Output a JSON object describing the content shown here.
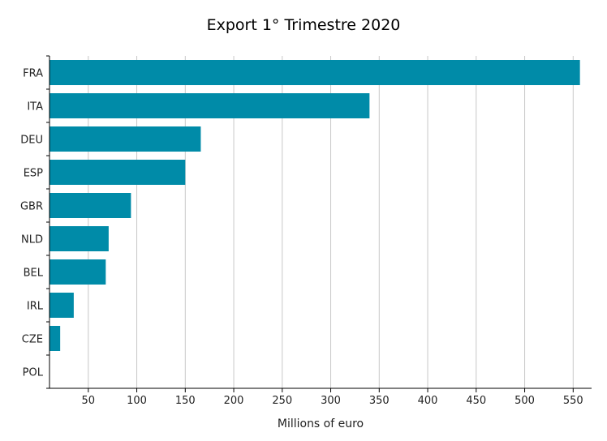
{
  "chart_data": {
    "type": "bar",
    "orientation": "horizontal",
    "title": "Export 1° Trimestre 2020",
    "xlabel": "Millions of euro",
    "ylabel": "",
    "categories": [
      "FRA",
      "ITA",
      "DEU",
      "ESP",
      "GBR",
      "NLD",
      "BEL",
      "IRL",
      "CZE",
      "POL"
    ],
    "values": [
      557,
      340,
      166,
      150,
      94,
      71,
      68,
      35,
      21,
      1
    ],
    "xlim": [
      10,
      570
    ],
    "xticks": [
      50,
      100,
      150,
      200,
      250,
      300,
      350,
      400,
      450,
      500,
      550
    ],
    "grid": "vertical",
    "legend": "none",
    "bar_color": "#008ba8",
    "grid_color": "#c8c8c8",
    "axis_color": "#000000"
  }
}
